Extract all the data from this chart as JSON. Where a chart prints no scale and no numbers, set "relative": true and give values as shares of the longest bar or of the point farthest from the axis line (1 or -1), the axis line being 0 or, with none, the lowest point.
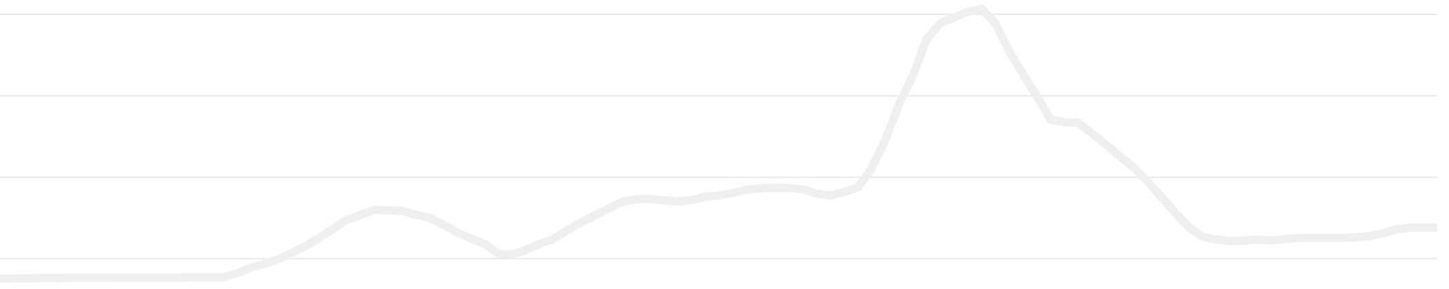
{
  "chart_data": {
    "type": "line",
    "relative": true,
    "line_style": "solid",
    "ref_lines": [
      {
        "axis": "y",
        "value": 0.074,
        "color": "#e3e3e3"
      },
      {
        "axis": "y",
        "value": 0.376,
        "color": "#e3e3e3"
      },
      {
        "axis": "y",
        "value": 0.678,
        "color": "#e3e3e3"
      },
      {
        "axis": "y",
        "value": 0.98,
        "color": "#e3e3e3"
      }
    ],
    "categories": [
      null,
      null,
      null,
      null,
      null,
      null,
      null,
      null,
      null,
      null,
      null,
      null,
      null,
      null,
      null,
      null,
      null,
      null,
      null,
      null,
      null,
      null,
      null,
      null,
      null,
      null,
      null,
      null,
      null,
      null,
      null,
      null,
      null,
      null,
      null,
      null,
      null,
      null,
      null,
      null,
      null,
      null,
      null,
      null,
      null,
      null,
      null,
      null,
      null,
      null,
      null,
      null,
      null,
      null,
      null,
      null,
      null,
      null,
      null,
      null,
      null,
      null,
      null,
      null,
      null,
      null,
      null,
      null,
      null,
      null,
      null,
      null,
      null,
      null,
      null,
      null,
      null,
      null,
      null,
      null,
      null,
      null,
      null,
      null,
      null,
      null,
      null,
      null,
      null,
      null,
      null,
      null,
      null,
      null,
      null,
      null,
      null,
      null,
      null,
      null,
      null,
      null,
      null,
      null,
      null
    ],
    "series": [
      {
        "color": "#efefef",
        "values": [
          0,
          0.001,
          0.001,
          0.002,
          0.002,
          0.003,
          0.003,
          0.003,
          0.003,
          0.004,
          0.004,
          0.004,
          0.004,
          0.004,
          0.005,
          0.005,
          0.005,
          0.019,
          0.041,
          0.054,
          0.072,
          0.096,
          0.121,
          0.152,
          0.185,
          0.219,
          0.237,
          0.255,
          0.253,
          0.251,
          0.236,
          0.226,
          0.199,
          0.171,
          0.148,
          0.128,
          0.091,
          0.09,
          0.107,
          0.13,
          0.148,
          0.181,
          0.21,
          0.235,
          0.261,
          0.286,
          0.295,
          0.296,
          0.29,
          0.286,
          0.292,
          0.304,
          0.309,
          0.318,
          0.33,
          0.335,
          0.337,
          0.336,
          0.332,
          0.316,
          0.308,
          0.321,
          0.338,
          0.408,
          0.514,
          0.647,
          0.752,
          0.889,
          0.947,
          0.969,
          0.99,
          1,
          0.944,
          0.841,
          0.756,
          0.675,
          0.59,
          0.58,
          0.578,
          0.538,
          0.497,
          0.454,
          0.412,
          0.361,
          0.303,
          0.245,
          0.191,
          0.155,
          0.145,
          0.139,
          0.141,
          0.145,
          0.141,
          0.148,
          0.151,
          0.151,
          0.151,
          0.151,
          0.153,
          0.157,
          0.168,
          0.182,
          0.189,
          0.189,
          0.189
        ]
      }
    ]
  }
}
